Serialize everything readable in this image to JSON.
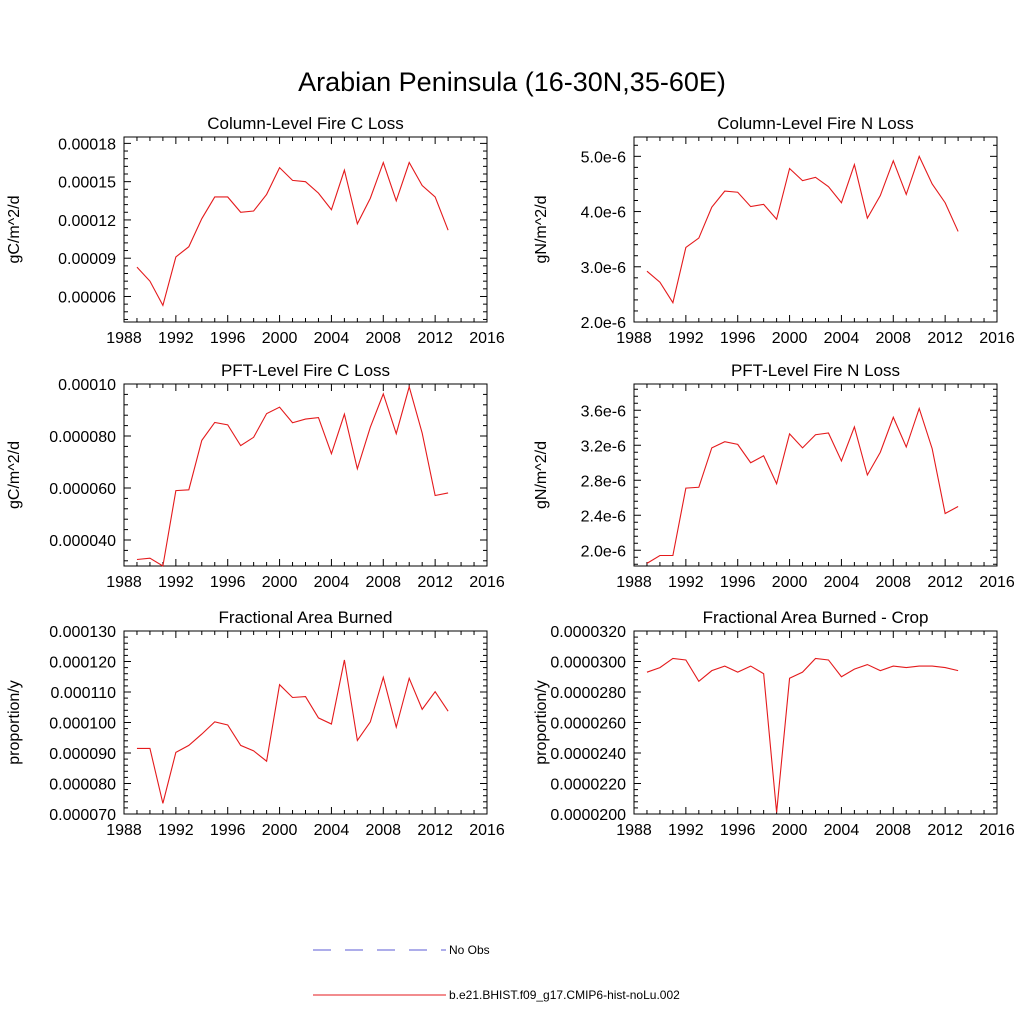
{
  "title": "Arabian Peninsula (16-30N,35-60E)",
  "legend": [
    {
      "label": "No Obs",
      "color": "#5b5bd6",
      "style": "dashed"
    },
    {
      "label": "b.e21.BHIST.f09_g17.CMIP6-hist-noLu.002",
      "color": "#e41a1c",
      "style": "solid"
    }
  ],
  "chart_data": [
    {
      "type": "line",
      "title": "Column-Level Fire C Loss",
      "ylabel": "gC/m^2/d",
      "xlim": [
        1988,
        2016
      ],
      "xticks": [
        1988,
        1992,
        1996,
        2000,
        2004,
        2008,
        2012,
        2016
      ],
      "ylim": [
        4e-05,
        0.000185
      ],
      "yticks": [
        6e-05,
        9e-05,
        0.00012,
        0.00015,
        0.00018
      ],
      "ytick_labels": [
        "0.00006",
        "0.00009",
        "0.00012",
        "0.00015",
        "0.00018"
      ],
      "x": [
        1989,
        1990,
        1991,
        1992,
        1993,
        1994,
        1995,
        1996,
        1997,
        1998,
        1999,
        2000,
        2001,
        2002,
        2003,
        2004,
        2005,
        2006,
        2007,
        2008,
        2009,
        2010,
        2011,
        2012,
        2013
      ],
      "series": [
        {
          "color": "#e41a1c",
          "values": [
            8.3e-05,
            7.2e-05,
            5.3e-05,
            9.1e-05,
            9.9e-05,
            0.000121,
            0.000138,
            0.000138,
            0.000126,
            0.000127,
            0.00014,
            0.000161,
            0.000151,
            0.00015,
            0.000141,
            0.000128,
            0.000159,
            0.000117,
            0.000137,
            0.000165,
            0.000135,
            0.000165,
            0.000147,
            0.000138,
            0.000112
          ]
        }
      ]
    },
    {
      "type": "line",
      "title": "Column-Level Fire N Loss",
      "ylabel": "gN/m^2/d",
      "xlim": [
        1988,
        2016
      ],
      "xticks": [
        1988,
        1992,
        1996,
        2000,
        2004,
        2008,
        2012,
        2016
      ],
      "ylim": [
        2e-06,
        5.35e-06
      ],
      "yticks": [
        2e-06,
        3e-06,
        4e-06,
        5e-06
      ],
      "ytick_labels": [
        "2.0e-6",
        "3.0e-6",
        "4.0e-6",
        "5.0e-6"
      ],
      "x": [
        1989,
        1990,
        1991,
        1992,
        1993,
        1994,
        1995,
        1996,
        1997,
        1998,
        1999,
        2000,
        2001,
        2002,
        2003,
        2004,
        2005,
        2006,
        2007,
        2008,
        2009,
        2010,
        2011,
        2012,
        2013
      ],
      "series": [
        {
          "color": "#e41a1c",
          "values": [
            2.92e-06,
            2.72e-06,
            2.35e-06,
            3.35e-06,
            3.52e-06,
            4.08e-06,
            4.37e-06,
            4.35e-06,
            4.09e-06,
            4.13e-06,
            3.86e-06,
            4.78e-06,
            4.56e-06,
            4.62e-06,
            4.45e-06,
            4.16e-06,
            4.85e-06,
            3.88e-06,
            4.29e-06,
            4.92e-06,
            4.31e-06,
            5e-06,
            4.5e-06,
            4.16e-06,
            3.64e-06
          ]
        }
      ]
    },
    {
      "type": "line",
      "title": "PFT-Level Fire C Loss",
      "ylabel": "gC/m^2/d",
      "xlim": [
        1988,
        2016
      ],
      "xticks": [
        1988,
        1992,
        1996,
        2000,
        2004,
        2008,
        2012,
        2016
      ],
      "ylim": [
        3e-05,
        0.0001
      ],
      "yticks": [
        4e-05,
        6e-05,
        8e-05,
        0.0001
      ],
      "ytick_labels": [
        "0.000040",
        "0.000060",
        "0.000080",
        "0.00010"
      ],
      "x": [
        1989,
        1990,
        1991,
        1992,
        1993,
        1994,
        1995,
        1996,
        1997,
        1998,
        1999,
        2000,
        2001,
        2002,
        2003,
        2004,
        2005,
        2006,
        2007,
        2008,
        2009,
        2010,
        2011,
        2012,
        2013
      ],
      "series": [
        {
          "color": "#e41a1c",
          "values": [
            3.25e-05,
            3.3e-05,
            3e-05,
            5.9e-05,
            5.93e-05,
            7.83e-05,
            8.52e-05,
            8.43e-05,
            7.63e-05,
            7.95e-05,
            8.86e-05,
            9.11e-05,
            8.51e-05,
            8.65e-05,
            8.71e-05,
            7.32e-05,
            8.84e-05,
            6.74e-05,
            8.34e-05,
            9.62e-05,
            8.09e-05,
            9.89e-05,
            8.11e-05,
            5.71e-05,
            5.81e-05
          ]
        }
      ]
    },
    {
      "type": "line",
      "title": "PFT-Level Fire N Loss",
      "ylabel": "gN/m^2/d",
      "xlim": [
        1988,
        2016
      ],
      "xticks": [
        1988,
        1992,
        1996,
        2000,
        2004,
        2008,
        2012,
        2016
      ],
      "ylim": [
        1.82e-06,
        3.9e-06
      ],
      "yticks": [
        2e-06,
        2.4e-06,
        2.8e-06,
        3.2e-06,
        3.6e-06
      ],
      "ytick_labels": [
        "2.0e-6",
        "2.4e-6",
        "2.8e-6",
        "3.2e-6",
        "3.6e-6"
      ],
      "x": [
        1989,
        1990,
        1991,
        1992,
        1993,
        1994,
        1995,
        1996,
        1997,
        1998,
        1999,
        2000,
        2001,
        2002,
        2003,
        2004,
        2005,
        2006,
        2007,
        2008,
        2009,
        2010,
        2011,
        2012,
        2013
      ],
      "series": [
        {
          "color": "#e41a1c",
          "values": [
            1.85e-06,
            1.94e-06,
            1.94e-06,
            2.71e-06,
            2.72e-06,
            3.17e-06,
            3.24e-06,
            3.21e-06,
            3e-06,
            3.08e-06,
            2.76e-06,
            3.33e-06,
            3.17e-06,
            3.32e-06,
            3.34e-06,
            3.02e-06,
            3.41e-06,
            2.86e-06,
            3.12e-06,
            3.52e-06,
            3.18e-06,
            3.62e-06,
            3.16e-06,
            2.42e-06,
            2.5e-06
          ]
        }
      ]
    },
    {
      "type": "line",
      "title": "Fractional Area Burned",
      "ylabel": "proportion/y",
      "xlim": [
        1988,
        2016
      ],
      "xticks": [
        1988,
        1992,
        1996,
        2000,
        2004,
        2008,
        2012,
        2016
      ],
      "ylim": [
        7e-05,
        0.00013
      ],
      "yticks": [
        7e-05,
        8e-05,
        9e-05,
        0.0001,
        0.00011,
        0.00012,
        0.00013
      ],
      "ytick_labels": [
        "0.000070",
        "0.000080",
        "0.000090",
        "0.000100",
        "0.000110",
        "0.000120",
        "0.000130"
      ],
      "x": [
        1989,
        1990,
        1991,
        1992,
        1993,
        1994,
        1995,
        1996,
        1997,
        1998,
        1999,
        2000,
        2001,
        2002,
        2003,
        2004,
        2005,
        2006,
        2007,
        2008,
        2009,
        2010,
        2011,
        2012,
        2013
      ],
      "series": [
        {
          "color": "#e41a1c",
          "values": [
            9.15e-05,
            9.15e-05,
            7.35e-05,
            9.02e-05,
            9.25e-05,
            9.62e-05,
            0.0001002,
            9.92e-05,
            9.25e-05,
            9.07e-05,
            8.73e-05,
            0.0001124,
            0.0001082,
            0.0001085,
            0.0001015,
            9.95e-05,
            0.0001205,
            9.41e-05,
            0.0001002,
            0.0001148,
            9.85e-05,
            0.0001145,
            0.0001043,
            0.0001101,
            0.0001037
          ]
        }
      ]
    },
    {
      "type": "line",
      "title": "Fractional Area Burned - Crop",
      "ylabel": "proportion/y",
      "xlim": [
        1988,
        2016
      ],
      "xticks": [
        1988,
        1992,
        1996,
        2000,
        2004,
        2008,
        2012,
        2016
      ],
      "ylim": [
        2e-05,
        3.2e-05
      ],
      "yticks": [
        2e-05,
        2.2e-05,
        2.4e-05,
        2.6e-05,
        2.8e-05,
        3e-05,
        3.2e-05
      ],
      "ytick_labels": [
        "0.0000200",
        "0.0000220",
        "0.0000240",
        "0.0000260",
        "0.0000280",
        "0.0000300",
        "0.0000320"
      ],
      "x": [
        1989,
        1990,
        1991,
        1992,
        1993,
        1994,
        1995,
        1996,
        1997,
        1998,
        1999,
        2000,
        2001,
        2002,
        2003,
        2004,
        2005,
        2006,
        2007,
        2008,
        2009,
        2010,
        2011,
        2012,
        2013
      ],
      "series": [
        {
          "color": "#e41a1c",
          "values": [
            2.93e-05,
            2.96e-05,
            3.02e-05,
            3.01e-05,
            2.87e-05,
            2.94e-05,
            2.97e-05,
            2.93e-05,
            2.97e-05,
            2.92e-05,
            2.01e-05,
            2.89e-05,
            2.93e-05,
            3.02e-05,
            3.01e-05,
            2.9e-05,
            2.95e-05,
            2.98e-05,
            2.94e-05,
            2.97e-05,
            2.96e-05,
            2.97e-05,
            2.97e-05,
            2.96e-05,
            2.94e-05
          ]
        }
      ]
    }
  ]
}
